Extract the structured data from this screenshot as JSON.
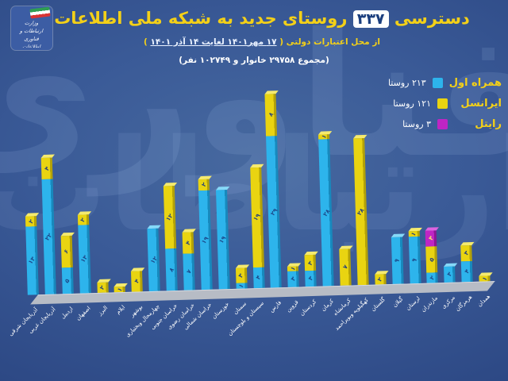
{
  "header": {
    "title_pre": "دسترسی",
    "title_count": "۳۳۷",
    "title_post": "روستای جدید به شبکه ملی اطلاعات",
    "subtitle_pre": "از محل اعتبارات دولتی ( ",
    "subtitle_date": "۱۷ مهر۱۴۰۱ لغایت ۱۴ آذر ۱۴۰۱",
    "subtitle_post": " )",
    "total_line": "(مجموع ۲۹۷۵۸ خانوار و ۱۰۲۷۴۹ نفر)",
    "logo_title": "وزارت ارتباطات و فناوری اطلاعات"
  },
  "watermark": {
    "right": "فناوری",
    "left": "ارتباطات"
  },
  "legend": {
    "items": [
      {
        "label": "همراه اول",
        "count": "۲۱۳ روستا",
        "color": "#2db4ec"
      },
      {
        "label": "ایرانسل",
        "count": "۱۲۱ روستا",
        "color": "#e9d411"
      },
      {
        "label": "رایتل",
        "count": "۳ روستا",
        "color": "#bf25c4"
      }
    ]
  },
  "chart_data": {
    "type": "bar",
    "stacked": true,
    "title": "دسترسی ۳۳۷ روستای جدید به شبکه ملی اطلاعات",
    "legend_position": "right",
    "grid": false,
    "ylim": [
      0,
      37
    ],
    "categories": [
      "آذربایجان شرقی",
      "آذربایجان غربی",
      "اردبیل",
      "اصفهان",
      "البرز",
      "ایلام",
      "بوشهر",
      "چهارمحال وبختیاری",
      "خراسان جنوبی",
      "خراسان رضوی",
      "خراسان شمالی",
      "خوزستان",
      "سمنان",
      "سیستان و بلوچستان",
      "فارس",
      "قزوین",
      "کردستان",
      "کرمان",
      "کرمانشاه",
      "کهگیلویه وبویراحمد",
      "گلستان",
      "گیلان",
      "لرستان",
      "مازندران",
      "مرکزی",
      "هرمزگان",
      "همدان"
    ],
    "series": [
      {
        "name": "همراه اول",
        "total": 213,
        "color": "#2db4ec",
        "dark": "#1789bd",
        "light": "#86d9f8",
        "label_color": "#1c4a8c",
        "values": [
          13,
          22,
          5,
          13,
          0,
          0,
          0,
          12,
          8,
          7,
          19,
          19,
          1,
          4,
          29,
          3,
          3,
          28,
          0,
          0,
          0,
          9,
          9,
          2,
          3,
          4,
          0
        ]
      },
      {
        "name": "ایرانسل",
        "total": 121,
        "color": "#e9d411",
        "dark": "#b3a108",
        "light": "#f5ea6e",
        "label_color": "#27427b",
        "values": [
          2,
          4,
          6,
          2,
          2,
          1,
          4,
          0,
          12,
          4,
          2,
          0,
          3,
          19,
          8,
          1,
          3,
          1,
          7,
          28,
          2,
          0,
          1,
          5,
          0,
          3,
          1
        ]
      },
      {
        "name": "رایتل",
        "total": 3,
        "color": "#bf25c4",
        "dark": "#8c1692",
        "light": "#dd63e0",
        "label_color": "#f7ec6a",
        "values": [
          0,
          0,
          0,
          0,
          0,
          0,
          0,
          0,
          0,
          0,
          0,
          0,
          0,
          0,
          0,
          0,
          0,
          0,
          0,
          0,
          0,
          0,
          0,
          3,
          0,
          0,
          0
        ]
      }
    ]
  }
}
